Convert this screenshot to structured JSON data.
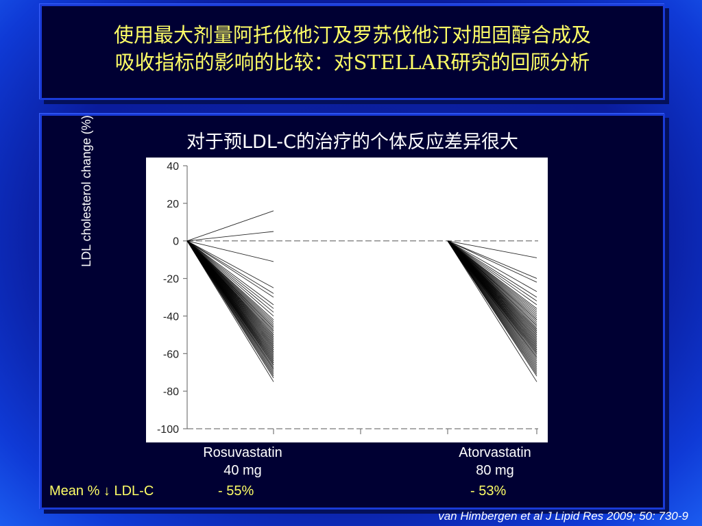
{
  "slide": {
    "title_line1": "使用最大剂量阿托伐他汀及罗苏伐他汀对胆固醇合成及",
    "title_line2": "吸收指标的影响的比较：对STELLAR研究的回顾分析",
    "subtitle": "对于预LDL-C的治疗的个体反应差异很大",
    "ylabel": "LDL cholesterol change (%)",
    "drug1_name": "Rosuvastatin",
    "drug1_dose": "40 mg",
    "drug2_name": "Atorvastatin",
    "drug2_dose": "80 mg",
    "mean_label": "Mean % ↓ LDL-C",
    "mean1": "- 55%",
    "mean2": "- 53%",
    "citation": "van Himbergen et al J Lipid Res 2009; 50: 730-9",
    "colors": {
      "title": "#ffff66",
      "panel": "#000033",
      "border": "#1a3bd8",
      "lines": "#000000"
    }
  },
  "chart_data": {
    "type": "line",
    "ylabel": "LDL cholesterol change (%)",
    "ylim": [
      -100,
      40
    ],
    "yticks": [
      40,
      20,
      0,
      -20,
      -40,
      -60,
      -80,
      -100
    ],
    "reference_lines": [
      0,
      -100
    ],
    "groups": [
      {
        "name": "Rosuvastatin 40 mg",
        "start": 0,
        "endpoints": [
          16,
          5,
          -11,
          -25,
          -28,
          -30,
          -34,
          -36,
          -38,
          -40,
          -42,
          -43,
          -44,
          -45,
          -46,
          -46,
          -47,
          -48,
          -48,
          -49,
          -50,
          -50,
          -51,
          -51,
          -52,
          -52,
          -53,
          -53,
          -54,
          -54,
          -55,
          -55,
          -56,
          -56,
          -57,
          -57,
          -58,
          -58,
          -59,
          -59,
          -60,
          -60,
          -61,
          -61,
          -62,
          -62,
          -63,
          -63,
          -64,
          -64,
          -65,
          -65,
          -66,
          -66,
          -67,
          -68,
          -68,
          -69,
          -70,
          -71,
          -72,
          -73,
          -75
        ]
      },
      {
        "name": "Atorvastatin 80 mg",
        "start": 0,
        "endpoints": [
          -9,
          -20,
          -22,
          -27,
          -30,
          -32,
          -34,
          -36,
          -37,
          -38,
          -39,
          -40,
          -41,
          -42,
          -42,
          -43,
          -44,
          -45,
          -45,
          -46,
          -47,
          -47,
          -48,
          -48,
          -49,
          -49,
          -50,
          -50,
          -51,
          -51,
          -52,
          -52,
          -53,
          -53,
          -54,
          -54,
          -55,
          -55,
          -56,
          -56,
          -57,
          -57,
          -58,
          -58,
          -59,
          -59,
          -60,
          -60,
          -61,
          -62,
          -62,
          -63,
          -64,
          -65,
          -66,
          -67,
          -68,
          -69,
          -70,
          -71,
          -72,
          -75
        ]
      }
    ]
  }
}
